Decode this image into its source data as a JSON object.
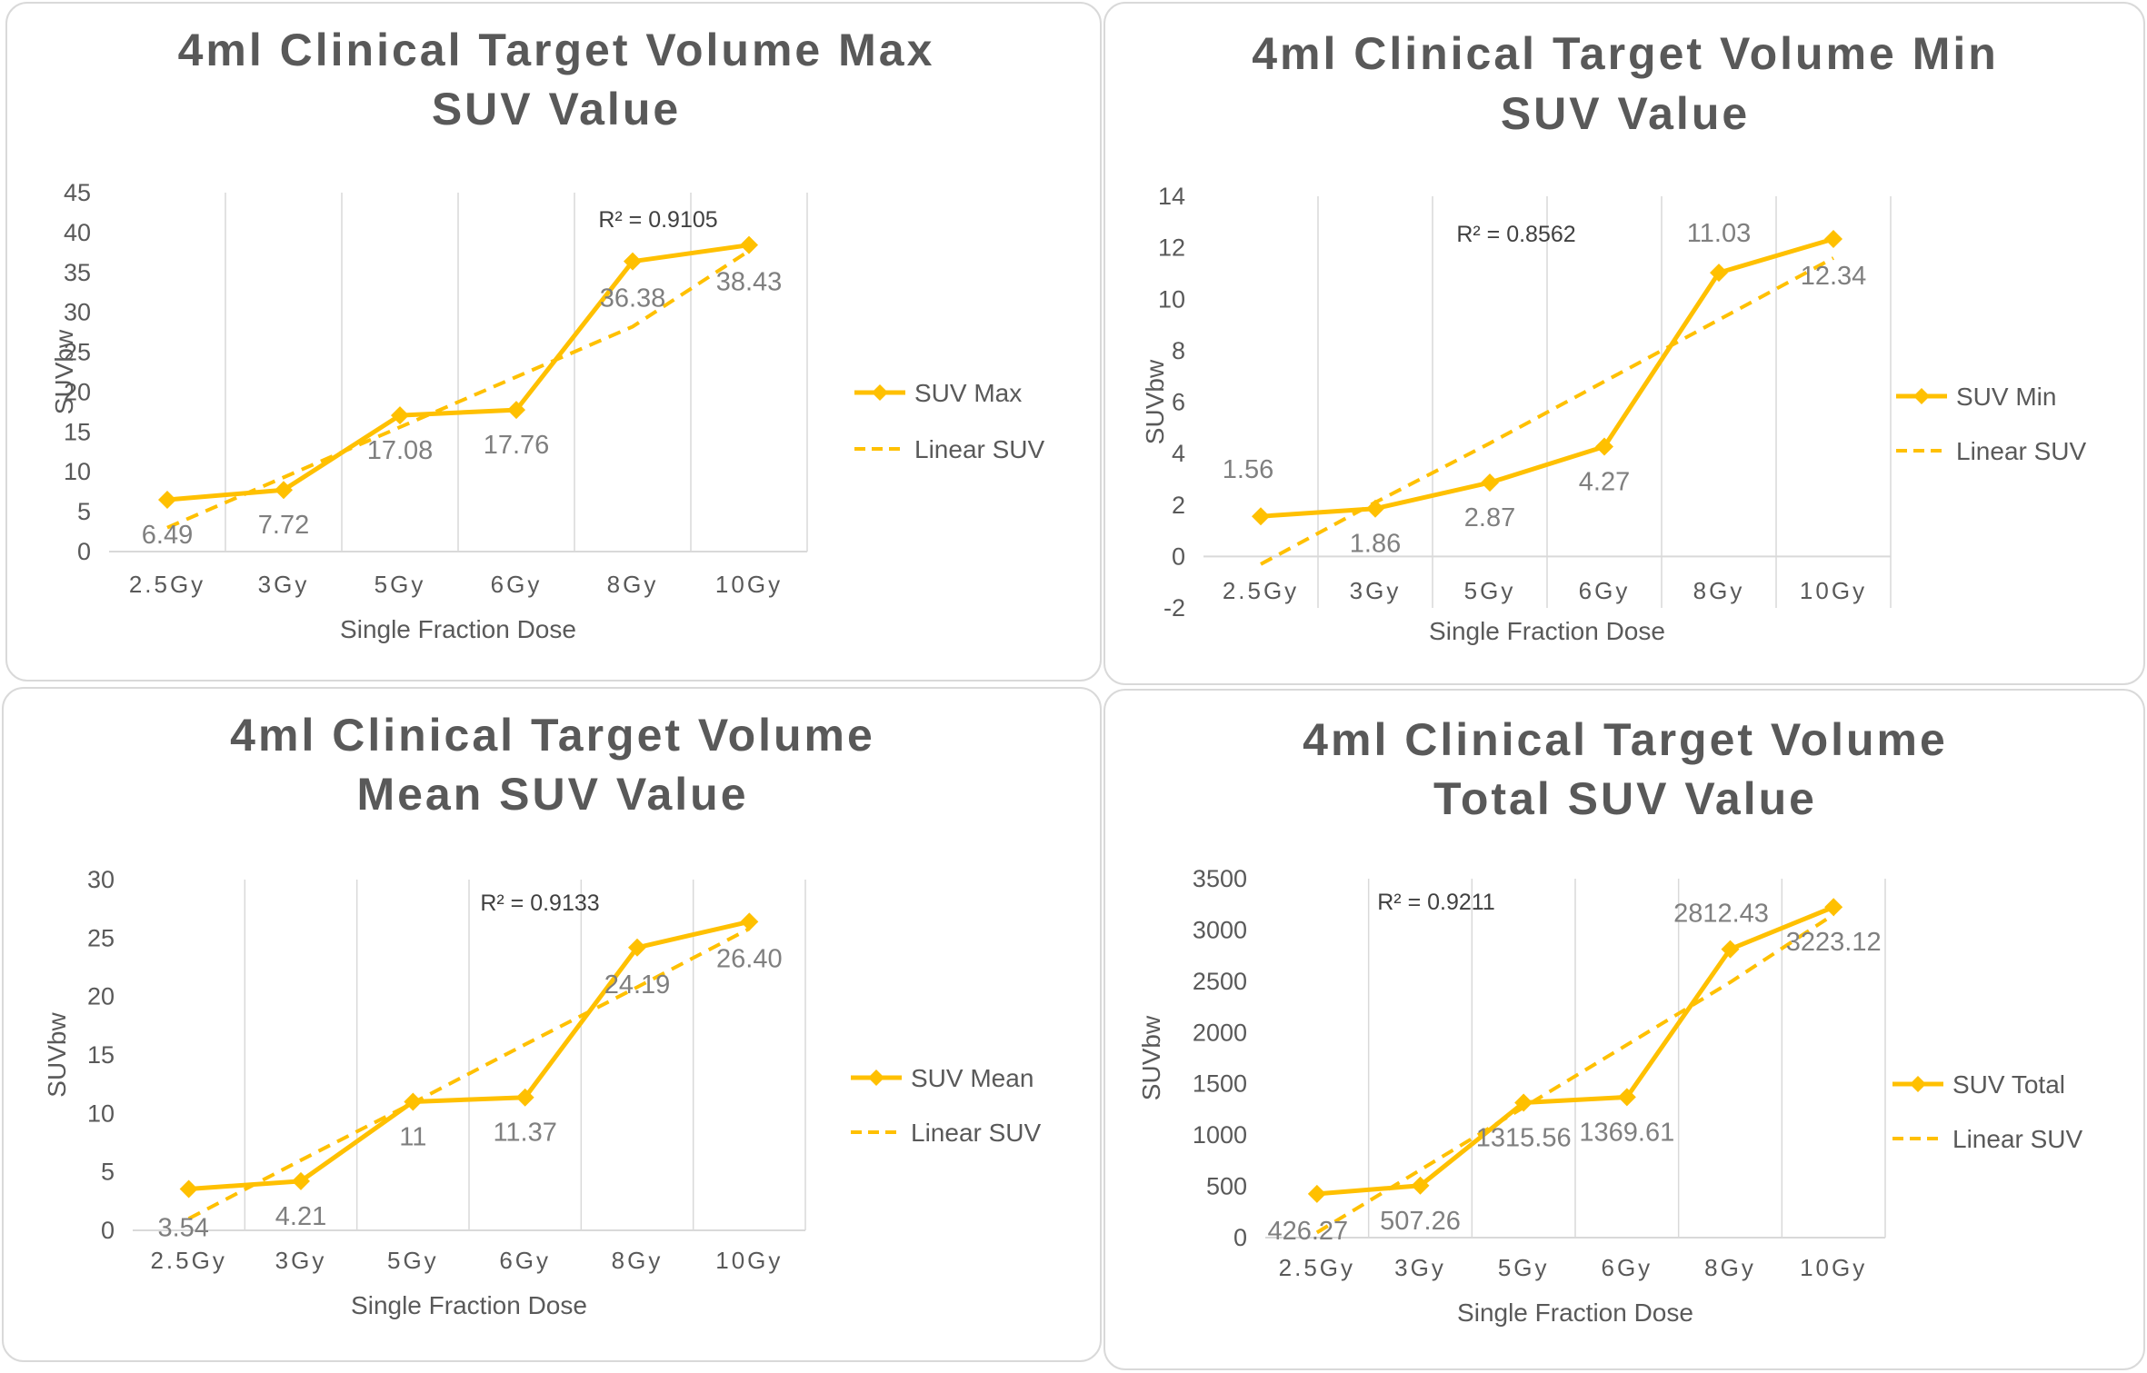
{
  "colors": {
    "series": "#FFC000",
    "grid": "#d9d9d9",
    "text": "#595959"
  },
  "chart_data": [
    {
      "type": "line",
      "title_lines": [
        "4ml Clinical Target Volume Max",
        "SUV Value"
      ],
      "categories": [
        "2.5Gy",
        "3Gy",
        "5Gy",
        "6Gy",
        "8Gy",
        "10Gy"
      ],
      "series": [
        {
          "name": "SUV Max",
          "values": [
            6.49,
            7.72,
            17.08,
            17.76,
            36.38,
            38.43
          ]
        },
        {
          "name": "Linear SUV",
          "style": "dashed-trendline",
          "values": [
            3.0,
            9.3,
            15.6,
            21.9,
            28.2,
            37.7
          ]
        }
      ],
      "data_labels": [
        "6.49",
        "7.72",
        "17.08",
        "17.76",
        "36.38",
        "38.43"
      ],
      "r_squared": "R² = 0.9105",
      "xlabel": "Single Fraction Dose",
      "ylabel": "SUVbw",
      "ylim": [
        0,
        45
      ],
      "yticks": [
        0,
        5,
        10,
        15,
        20,
        25,
        30,
        35,
        40,
        45
      ],
      "legend": "right"
    },
    {
      "type": "line",
      "title_lines": [
        "4ml Clinical Target Volume Min",
        "SUV Value"
      ],
      "categories": [
        "2.5Gy",
        "3Gy",
        "5Gy",
        "6Gy",
        "8Gy",
        "10Gy"
      ],
      "series": [
        {
          "name": "SUV Min",
          "values": [
            1.56,
            1.86,
            2.87,
            4.27,
            11.03,
            12.34
          ]
        },
        {
          "name": "Linear SUV",
          "style": "dashed-trendline",
          "values": [
            -0.3,
            2.1,
            4.4,
            6.8,
            9.2,
            11.6
          ]
        }
      ],
      "data_labels": [
        "1.56",
        "1.86",
        "2.87",
        "4.27",
        "11.03",
        "12.34"
      ],
      "r_squared": "R² = 0.8562",
      "xlabel": "Single Fraction Dose",
      "ylabel": "SUVbw",
      "ylim": [
        -2,
        14
      ],
      "yticks": [
        -2,
        0,
        2,
        4,
        6,
        8,
        10,
        12,
        14
      ],
      "legend": "right"
    },
    {
      "type": "line",
      "title_lines": [
        "4ml Clinical Target Volume",
        "Mean SUV Value"
      ],
      "categories": [
        "2.5Gy",
        "3Gy",
        "5Gy",
        "6Gy",
        "8Gy",
        "10Gy"
      ],
      "series": [
        {
          "name": "SUV Mean",
          "values": [
            3.54,
            4.21,
            11,
            11.37,
            24.19,
            26.4
          ]
        },
        {
          "name": "Linear SUV",
          "style": "dashed-trendline",
          "values": [
            1.0,
            6.0,
            10.9,
            15.9,
            20.8,
            25.8
          ]
        }
      ],
      "data_labels": [
        "3.54",
        "4.21",
        "11",
        "11.37",
        "24.19",
        "26.40"
      ],
      "r_squared": "R² = 0.9133",
      "xlabel": "Single Fraction Dose",
      "ylabel": "SUVbw",
      "ylim": [
        0,
        30
      ],
      "yticks": [
        0,
        5,
        10,
        15,
        20,
        25,
        30
      ],
      "legend": "right"
    },
    {
      "type": "line",
      "title_lines": [
        "4ml Clinical Target Volume",
        "Total SUV Value"
      ],
      "categories": [
        "2.5Gy",
        "3Gy",
        "5Gy",
        "6Gy",
        "8Gy",
        "10Gy"
      ],
      "series": [
        {
          "name": "SUV Total",
          "values": [
            426.27,
            507.26,
            1315.56,
            1369.61,
            2812.43,
            3223.12
          ]
        },
        {
          "name": "Linear SUV",
          "style": "dashed-trendline",
          "values": [
            50,
            660,
            1270,
            1880,
            2490,
            3150
          ]
        }
      ],
      "data_labels": [
        "426.27",
        "507.26",
        "1315.56",
        "1369.61",
        "2812.43",
        "3223.12"
      ],
      "r_squared": "R² = 0.9211",
      "xlabel": "Single Fraction Dose",
      "ylabel": "SUVbw",
      "ylim": [
        0,
        3500
      ],
      "yticks": [
        0,
        500,
        1000,
        1500,
        2000,
        2500,
        3000,
        3500
      ],
      "legend": "right"
    }
  ]
}
